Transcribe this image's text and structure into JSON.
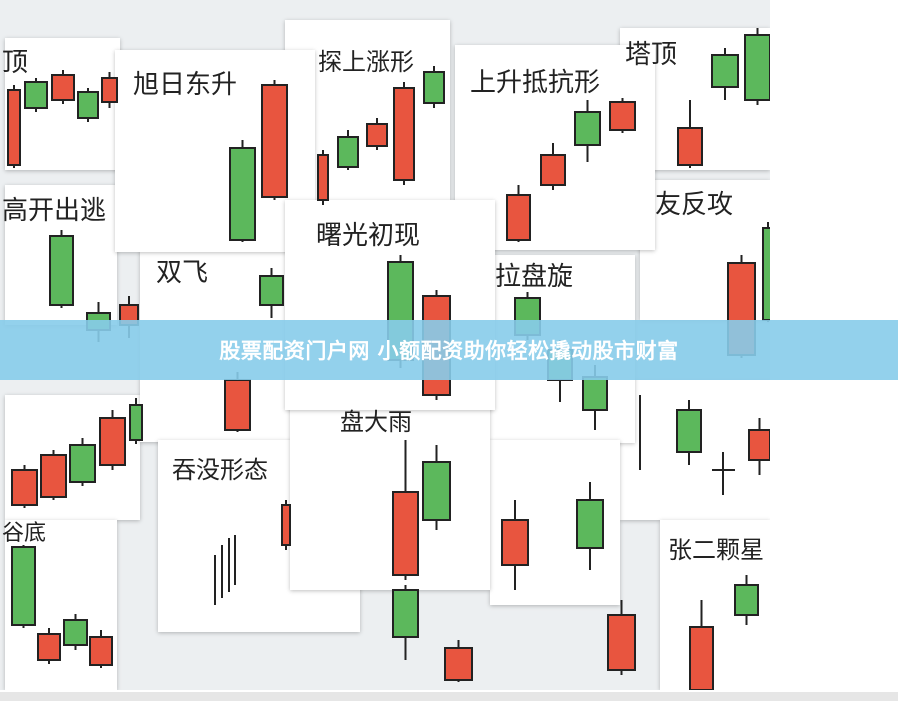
{
  "banner": {
    "text": "股票配资门户网 小额配资助你轻松撬动股市财富"
  },
  "image": {
    "cards": [
      {
        "label": "顶"
      },
      {
        "label": "旭日东升"
      },
      {
        "label": "探上涨形"
      },
      {
        "label": "上升抵抗形"
      },
      {
        "label": "塔顶"
      },
      {
        "label": "高开出逃"
      },
      {
        "label": "曙光初现"
      },
      {
        "label": "双飞"
      },
      {
        "label": "拉盘旋"
      },
      {
        "label": "友反攻"
      },
      {
        "label": "盘大雨"
      },
      {
        "label": "吞没形态"
      },
      {
        "label": "张二颗星"
      },
      {
        "label": "谷底"
      }
    ],
    "colors": {
      "bull": "#5cb85c",
      "bear": "#e8553f",
      "banner": "#87ccea"
    }
  }
}
